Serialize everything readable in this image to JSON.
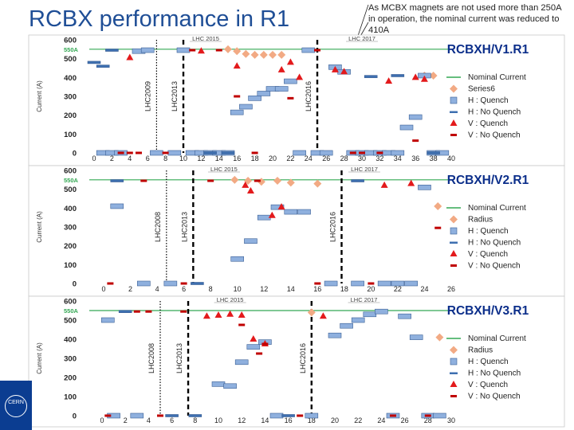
{
  "slide": {
    "title": "RCBX performance in R1",
    "note": "As MCBX magnets are not used more than 250A in operation, the nominal current was reduced to 410A",
    "logo": "CERN"
  },
  "colors": {
    "nominal": "#33a853",
    "series6": "#f2aa84",
    "h_quench": "#8fb0de",
    "h_noquench": "#3e6fb0",
    "v_quench": "#e31a1c",
    "v_noquench": "#c00000",
    "run_line": "#000000",
    "title": "#0b2e8a",
    "nominal_label": "#33a853"
  },
  "chart_data": [
    {
      "type": "scatter",
      "title": "RCBXH/V1.R1",
      "ylabel": "Current (A)",
      "ylim": [
        0,
        600
      ],
      "yticks": [
        0,
        100,
        200,
        300,
        400,
        500,
        600
      ],
      "xlim": [
        0,
        40
      ],
      "xticks": [
        0,
        2,
        4,
        6,
        8,
        10,
        12,
        14,
        16,
        18,
        20,
        22,
        24,
        26,
        28,
        30,
        32,
        34,
        36,
        38,
        40
      ],
      "nominal_current": 550,
      "nominal_label": "550A",
      "campaigns": [
        {
          "label": "LHC 2015",
          "x": 12.5
        },
        {
          "label": "LHC 2017",
          "x": 30
        }
      ],
      "boundaries": [
        {
          "x": 7,
          "label": "LHC2009",
          "style": "dotted"
        },
        {
          "x": 10,
          "label": "LHC2013",
          "style": "dashed"
        },
        {
          "x": 25,
          "label": "LHC2016",
          "style": "dashed"
        }
      ],
      "legend": [
        "Nominal Current",
        "Series6",
        "H : Quench",
        "H : No Quench",
        "V : Quench",
        "V : No Quench"
      ],
      "series": [
        {
          "name": "Series6",
          "marker": "diamond",
          "x": [
            15,
            16,
            17,
            18,
            19,
            20,
            21,
            37,
            38
          ],
          "y": [
            550,
            540,
            525,
            520,
            520,
            520,
            520,
            410,
            410
          ]
        },
        {
          "name": "H : Quench",
          "marker": "bar",
          "x": [
            1,
            2,
            3,
            5,
            6,
            7,
            9,
            10,
            11,
            12,
            13,
            14,
            15,
            16,
            17,
            18,
            19,
            20,
            21,
            22,
            23,
            24,
            25,
            26,
            27,
            28,
            29,
            30,
            31,
            32,
            33,
            34,
            35,
            36,
            37,
            38,
            39
          ],
          "y": [
            0,
            0,
            0,
            540,
            545,
            0,
            0,
            545,
            0,
            0,
            0,
            0,
            0,
            215,
            245,
            290,
            315,
            340,
            340,
            380,
            0,
            545,
            0,
            0,
            455,
            430,
            0,
            0,
            0,
            0,
            0,
            0,
            135,
            190,
            410,
            0,
            0
          ]
        },
        {
          "name": "H : No Quench",
          "marker": "bar",
          "x": [
            0,
            1,
            2,
            13,
            15,
            31,
            34,
            38
          ],
          "y": [
            480,
            460,
            545,
            0,
            0,
            405,
            410,
            0
          ]
        },
        {
          "name": "V : Quench",
          "marker": "triangle",
          "x": [
            4,
            12,
            16,
            21,
            22,
            23,
            27,
            28,
            33,
            36,
            37
          ],
          "y": [
            505,
            540,
            460,
            440,
            480,
            400,
            440,
            430,
            380,
            400,
            390
          ]
        },
        {
          "name": "V : No Quench",
          "marker": "dash",
          "x": [
            3,
            4,
            5,
            8,
            11,
            14,
            16,
            18,
            22,
            25,
            29,
            30,
            32,
            36
          ],
          "y": [
            0,
            0,
            0,
            0,
            545,
            545,
            300,
            0,
            290,
            545,
            0,
            0,
            0,
            65
          ]
        }
      ]
    },
    {
      "type": "scatter",
      "title": "RCBXH/V2.R1",
      "ylabel": "Current (A)",
      "ylim": [
        0,
        600
      ],
      "yticks": [
        0,
        100,
        200,
        300,
        400,
        500,
        600
      ],
      "xlim": [
        0,
        26
      ],
      "xticks": [
        0,
        2,
        4,
        6,
        8,
        10,
        12,
        14,
        16,
        18,
        20,
        22,
        24,
        26
      ],
      "nominal_current": 550,
      "nominal_label": "550A",
      "campaigns": [
        {
          "label": "LHC 2015",
          "x": 9
        },
        {
          "label": "LHC 2017",
          "x": 19.5
        }
      ],
      "boundaries": [
        {
          "x": 4.7,
          "label": "LHC2008",
          "style": "dotted"
        },
        {
          "x": 6.7,
          "label": "LHC2013",
          "style": "dashed"
        },
        {
          "x": 17.8,
          "label": "LHC2016",
          "style": "dashed"
        }
      ],
      "legend": [
        "Nominal Current",
        "Radius",
        "H : Quench",
        "H : No Quench",
        "V : Quench",
        "V : No Quench"
      ],
      "series": [
        {
          "name": "Radius",
          "marker": "diamond",
          "x": [
            9.8,
            10.8,
            11.8,
            13,
            14,
            16,
            25
          ],
          "y": [
            550,
            545,
            540,
            545,
            535,
            530,
            410
          ]
        },
        {
          "name": "H : Quench",
          "marker": "bar",
          "x": [
            1,
            3,
            5,
            10,
            11,
            12,
            13,
            14,
            15,
            17,
            19,
            21,
            22,
            23,
            24
          ],
          "y": [
            410,
            0,
            0,
            130,
            225,
            350,
            405,
            380,
            380,
            0,
            0,
            0,
            0,
            0,
            510
          ]
        },
        {
          "name": "H : No Quench",
          "marker": "bar",
          "x": [
            1,
            7,
            19
          ],
          "y": [
            545,
            0,
            545
          ]
        },
        {
          "name": "V : Quench",
          "marker": "triangle",
          "x": [
            10.6,
            11,
            12.6,
            13.3,
            21,
            23
          ],
          "y": [
            520,
            490,
            360,
            405,
            520,
            530
          ]
        },
        {
          "name": "V : No Quench",
          "marker": "dash",
          "x": [
            0.5,
            3,
            6,
            8,
            11.5,
            16,
            20,
            25
          ],
          "y": [
            0,
            545,
            0,
            545,
            545,
            0,
            0,
            295
          ]
        }
      ]
    },
    {
      "type": "scatter",
      "title": "RCBXH/V3.R1",
      "ylabel": "Current (A)",
      "ylim": [
        0,
        600
      ],
      "yticks": [
        0,
        100,
        200,
        300,
        400,
        500,
        600
      ],
      "xlim": [
        0,
        30
      ],
      "xticks": [
        0,
        2,
        4,
        6,
        8,
        10,
        12,
        14,
        16,
        18,
        20,
        22,
        24,
        26,
        28,
        30
      ],
      "nominal_current": 550,
      "nominal_label": "550A",
      "campaigns": [
        {
          "label": "LHC 2015",
          "x": 11
        },
        {
          "label": "LHC 2017",
          "x": 22.5
        }
      ],
      "boundaries": [
        {
          "x": 5,
          "label": "LHC2008",
          "style": "dotted"
        },
        {
          "x": 7.4,
          "label": "LHC2013",
          "style": "dashed"
        },
        {
          "x": 18,
          "label": "LHC2016",
          "style": "dashed"
        }
      ],
      "legend": [
        "Nominal Current",
        "Radius",
        "H : Quench",
        "H : No Quench",
        "V : Quench",
        "V : No Quench"
      ],
      "series": [
        {
          "name": "Radius",
          "marker": "diamond",
          "x": [
            18,
            29
          ],
          "y": [
            540,
            410
          ]
        },
        {
          "name": "H : Quench",
          "marker": "bar",
          "x": [
            0.5,
            1,
            3,
            10,
            11,
            12,
            13,
            14,
            15,
            18,
            20,
            21,
            22,
            23,
            24,
            25,
            26,
            27,
            28,
            29
          ],
          "y": [
            500,
            0,
            0,
            165,
            155,
            280,
            360,
            385,
            0,
            0,
            420,
            470,
            500,
            530,
            545,
            0,
            520,
            410,
            0,
            0
          ]
        },
        {
          "name": "H : No Quench",
          "marker": "bar",
          "x": [
            2,
            6,
            8,
            16
          ],
          "y": [
            545,
            0,
            0,
            0
          ]
        },
        {
          "name": "V : Quench",
          "marker": "triangle",
          "x": [
            9,
            10,
            11,
            12,
            13,
            14,
            19
          ],
          "y": [
            520,
            525,
            530,
            525,
            400,
            375,
            520
          ]
        },
        {
          "name": "V : No Quench",
          "marker": "dash",
          "x": [
            0.5,
            3,
            4,
            5,
            7,
            12,
            13.5,
            14,
            17,
            25,
            28
          ],
          "y": [
            0,
            545,
            545,
            0,
            545,
            475,
            325,
            375,
            0,
            0,
            0
          ]
        }
      ]
    }
  ]
}
